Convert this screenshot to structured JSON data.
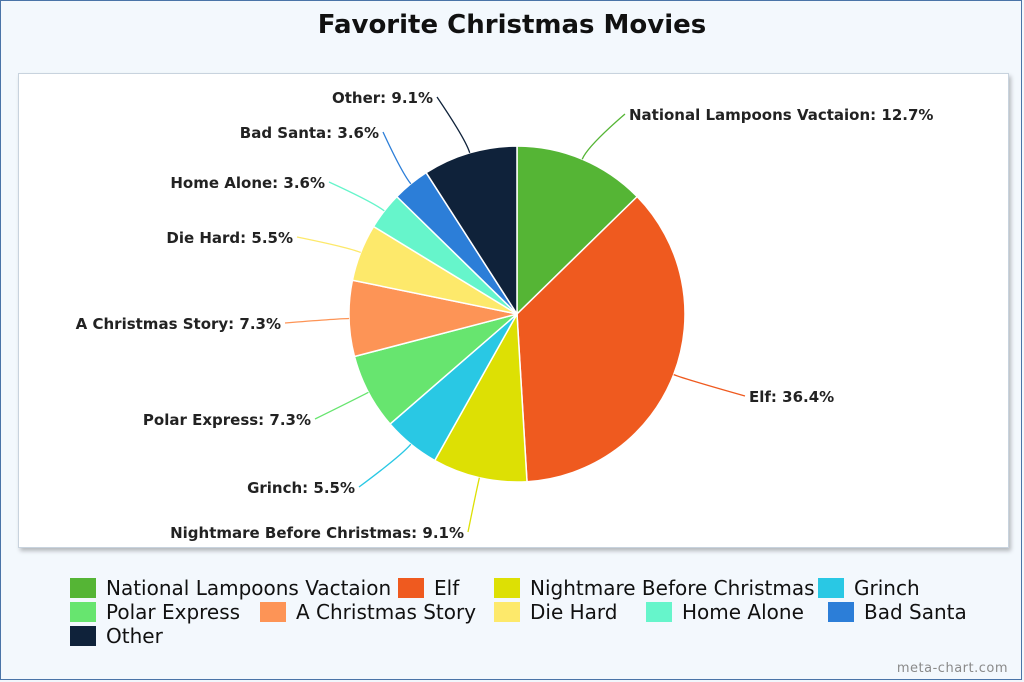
{
  "chart_data": {
    "type": "pie",
    "title": "Favorite Christmas Movies",
    "slices": [
      {
        "label": "National Lampoons Vactaion",
        "value": 12.7,
        "display": "National Lampoons Vactaion: 12.7%",
        "color": "#55b535"
      },
      {
        "label": "Elf",
        "value": 36.4,
        "display": "Elf: 36.4%",
        "color": "#ef5a1f"
      },
      {
        "label": "Nightmare Before Christmas",
        "value": 9.1,
        "display": "Nightmare Before Christmas: 9.1%",
        "color": "#dde004"
      },
      {
        "label": "Grinch",
        "value": 5.5,
        "display": "Grinch: 5.5%",
        "color": "#29c8e4"
      },
      {
        "label": "Polar Express",
        "value": 7.3,
        "display": "Polar Express: 7.3%",
        "color": "#67e56f"
      },
      {
        "label": "A Christmas Story",
        "value": 7.3,
        "display": "A Christmas Story: 7.3%",
        "color": "#fd9456"
      },
      {
        "label": "Die Hard",
        "value": 5.5,
        "display": "Die Hard: 5.5%",
        "color": "#fde96b"
      },
      {
        "label": "Home Alone",
        "value": 3.6,
        "display": "Home Alone: 3.6%",
        "color": "#66f5cb"
      },
      {
        "label": "Bad Santa",
        "value": 3.6,
        "display": "Bad Santa: 3.6%",
        "color": "#2c7ed8"
      },
      {
        "label": "Other",
        "value": 9.1,
        "display": "Other: 9.1%",
        "color": "#0f223a"
      }
    ],
    "legend_position": "bottom"
  },
  "watermark": "meta-chart.com"
}
